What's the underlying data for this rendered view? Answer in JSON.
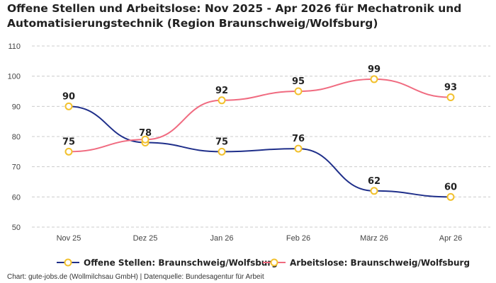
{
  "title": "Offene Stellen und Arbeitslose: Nov 2025 - Apr 2026 für Mechatronik und Automatisierungstechnik (Region Braunschweig/Wolfsburg)",
  "footer": "Chart: gute-jobs.de (Wollmilchsau GmbH) | Datenquelle: Bundesagentur für Arbeit",
  "colors": {
    "offene": "#1f2f8a",
    "arbeitslose": "#f06b80",
    "marker": "#f2c12e",
    "grid": "#cccccc"
  },
  "chart_data": {
    "type": "line",
    "categories": [
      "Nov 25",
      "Dez 25",
      "Jan 26",
      "Feb 26",
      "März 26",
      "Apr 26"
    ],
    "ylim": [
      50,
      110
    ],
    "yticks": [
      50,
      60,
      70,
      80,
      90,
      100,
      110
    ],
    "grid": true,
    "legend_position": "bottom",
    "series": [
      {
        "name": "Offene Stellen: Braunschweig/Wolfsburg",
        "color": "#1f2f8a",
        "values": [
          90,
          78,
          75,
          76,
          62,
          60
        ],
        "labels_shown": [
          true,
          false,
          true,
          true,
          true,
          true
        ]
      },
      {
        "name": "Arbeitslose: Braunschweig/Wolfsburg",
        "color": "#f06b80",
        "values": [
          75,
          79,
          92,
          95,
          99,
          93
        ],
        "labels_shown": [
          true,
          false,
          true,
          true,
          true,
          true
        ]
      }
    ],
    "extra_labels": [
      {
        "category_index": 1,
        "text": "78"
      }
    ]
  }
}
